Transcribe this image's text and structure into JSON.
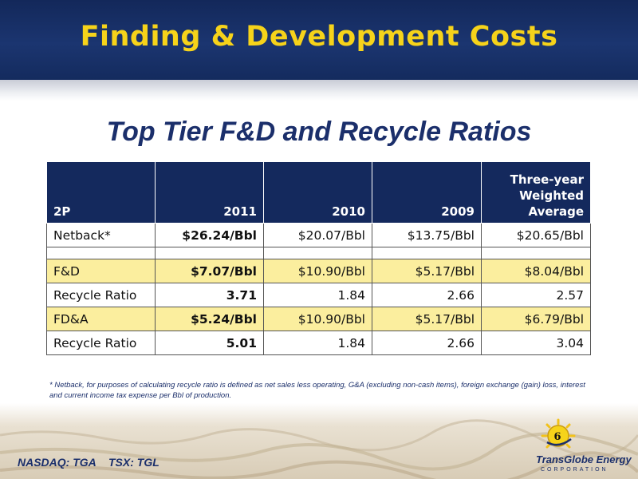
{
  "header": {
    "title": "Finding & Development Costs"
  },
  "subtitle": "Top Tier F&D and Recycle Ratios",
  "table": {
    "columns": [
      "2P",
      "2011",
      "2010",
      "2009",
      "Three-year Weighted Average"
    ],
    "rows": [
      {
        "label": "Netback*",
        "values": [
          "$26.24/Bbl",
          "$20.07/Bbl",
          "$13.75/Bbl",
          "$20.65/Bbl"
        ]
      },
      {
        "label": "",
        "values": [
          "",
          "",
          "",
          ""
        ]
      },
      {
        "label": "F&D",
        "values": [
          "$7.07/Bbl",
          "$10.90/Bbl",
          "$5.17/Bbl",
          "$8.04/Bbl"
        ]
      },
      {
        "label": "Recycle Ratio",
        "values": [
          "3.71",
          "1.84",
          "2.66",
          "2.57"
        ]
      },
      {
        "label": "FD&A",
        "values": [
          "$5.24/Bbl",
          "$10.90/Bbl",
          "$5.17/Bbl",
          "$6.79/Bbl"
        ]
      },
      {
        "label": "Recycle Ratio",
        "values": [
          "5.01",
          "1.84",
          "2.66",
          "3.04"
        ]
      }
    ],
    "highlight_color": "#fbee9e",
    "header_color": "#14295d"
  },
  "footnote": "* Netback, for purposes of calculating recycle ratio is defined as net sales less operating, G&A (excluding non-cash items), foreign exchange (gain) loss, interest and current income tax expense per Bbl of production.",
  "footer": {
    "nasdaq": "NASDAQ: TGA",
    "tsx": "TSX: TGL",
    "page_number": "6",
    "logo_name": "TransGlobe Energy",
    "logo_sub": "CORPORATION"
  },
  "colors": {
    "navy": "#1b2f6b",
    "gold": "#f6d31a"
  }
}
